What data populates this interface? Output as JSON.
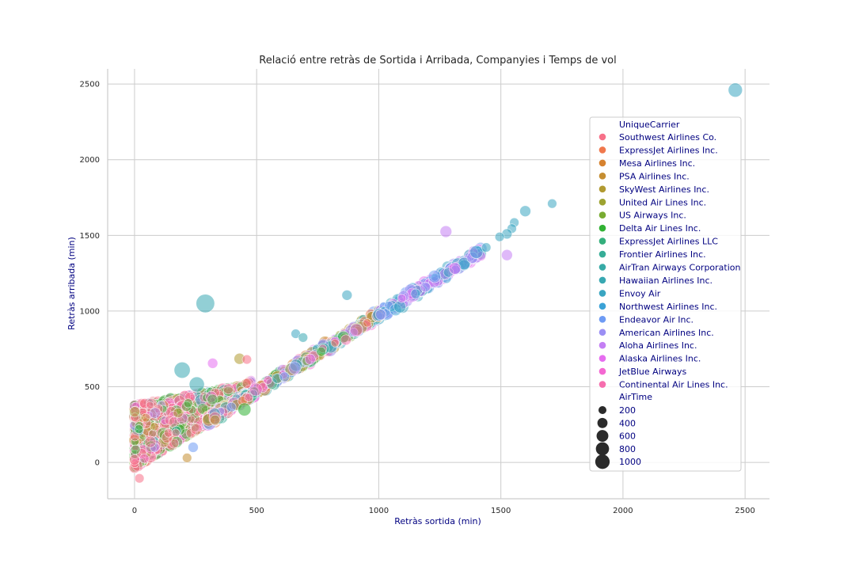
{
  "chart_data": {
    "type": "scatter",
    "title": "Relació entre retràs de Sortida i Arribada, Companyies i Temps de vol",
    "xlabel": "Retràs sortida (min)",
    "ylabel": "Retràs arribada (min)",
    "xlim": [
      -110,
      2600
    ],
    "ylim": [
      -240,
      2600
    ],
    "xticks": [
      "0",
      "500",
      "1000",
      "1500",
      "2000",
      "2500"
    ],
    "yticks": [
      "0",
      "500",
      "1000",
      "1500",
      "2000",
      "2500"
    ],
    "xtick_values": [
      0,
      500,
      1000,
      1500,
      2000,
      2500
    ],
    "ytick_values": [
      0,
      500,
      1000,
      1500,
      2000,
      2500
    ],
    "grid": true,
    "legend_position": "right",
    "hue_title": "UniqueCarrier",
    "size_title": "AirTime",
    "carriers": [
      {
        "name": "Southwest Airlines Co.",
        "color": "#f77189"
      },
      {
        "name": "ExpressJet Airlines Inc.",
        "color": "#f0784d"
      },
      {
        "name": "Mesa Airlines Inc.",
        "color": "#d6822f"
      },
      {
        "name": "PSA Airlines Inc.",
        "color": "#c58e32"
      },
      {
        "name": "SkyWest Airlines Inc.",
        "color": "#b19a31"
      },
      {
        "name": "United Air Lines Inc.",
        "color": "#9da331"
      },
      {
        "name": "US Airways Inc.",
        "color": "#78ab31"
      },
      {
        "name": "Delta Air Lines Inc.",
        "color": "#32b234"
      },
      {
        "name": "ExpressJet Airlines LLC",
        "color": "#34af7c"
      },
      {
        "name": "Frontier Airlines Inc.",
        "color": "#36ad97"
      },
      {
        "name": "AirTran Airways Corporation",
        "color": "#37aaa6"
      },
      {
        "name": "Hawaiian Airlines Inc.",
        "color": "#38a8b2"
      },
      {
        "name": "Envoy Air",
        "color": "#3aa5c1"
      },
      {
        "name": "Northwest Airlines Inc.",
        "color": "#3ba2d6"
      },
      {
        "name": "Endeavor Air Inc.",
        "color": "#6e9bf4"
      },
      {
        "name": "American Airlines Inc.",
        "color": "#9b8ff4"
      },
      {
        "name": "Aloha Airlines Inc.",
        "color": "#c47ff4"
      },
      {
        "name": "Alaska Airlines Inc.",
        "color": "#e66df0"
      },
      {
        "name": "JetBlue Airways",
        "color": "#f468d2"
      },
      {
        "name": "Continental Air Lines Inc.",
        "color": "#f66eae"
      }
    ],
    "size_legend": [
      "200",
      "400",
      "600",
      "800",
      "1000"
    ],
    "size_legend_values": [
      200,
      400,
      600,
      800,
      1000
    ],
    "notable_points": [
      {
        "x": 2460,
        "y": 2460,
        "airtime": 500,
        "carrier": "Envoy Air"
      },
      {
        "x": 290,
        "y": 1050,
        "airtime": 1000,
        "carrier": "Hawaiian Airlines Inc."
      },
      {
        "x": 195,
        "y": 610,
        "airtime": 700,
        "carrier": "Hawaiian Airlines Inc."
      },
      {
        "x": 255,
        "y": 515,
        "airtime": 600,
        "carrier": "Hawaiian Airlines Inc."
      },
      {
        "x": 1710,
        "y": 1710,
        "airtime": 150,
        "carrier": "Envoy Air"
      },
      {
        "x": 1600,
        "y": 1660,
        "airtime": 250,
        "carrier": "Envoy Air"
      },
      {
        "x": 1555,
        "y": 1585,
        "airtime": 150,
        "carrier": "Envoy Air"
      },
      {
        "x": 1545,
        "y": 1545,
        "airtime": 150,
        "carrier": "Envoy Air"
      },
      {
        "x": 1525,
        "y": 1510,
        "airtime": 200,
        "carrier": "Envoy Air"
      },
      {
        "x": 1495,
        "y": 1490,
        "airtime": 150,
        "carrier": "Envoy Air"
      },
      {
        "x": 1275,
        "y": 1525,
        "airtime": 300,
        "carrier": "Aloha Airlines Inc."
      },
      {
        "x": 1525,
        "y": 1370,
        "airtime": 250,
        "carrier": "Aloha Airlines Inc."
      },
      {
        "x": 1400,
        "y": 1390,
        "airtime": 400,
        "carrier": "Northwest Airlines Inc."
      },
      {
        "x": 1440,
        "y": 1420,
        "airtime": 150,
        "carrier": "Envoy Air"
      },
      {
        "x": 870,
        "y": 1105,
        "airtime": 200,
        "carrier": "Envoy Air"
      },
      {
        "x": 660,
        "y": 850,
        "airtime": 150,
        "carrier": "Envoy Air"
      },
      {
        "x": 690,
        "y": 825,
        "airtime": 150,
        "carrier": "Hawaiian Airlines Inc."
      },
      {
        "x": 430,
        "y": 685,
        "airtime": 250,
        "carrier": "SkyWest Airlines Inc."
      },
      {
        "x": 320,
        "y": 655,
        "airtime": 200,
        "carrier": "Alaska Airlines Inc."
      },
      {
        "x": 460,
        "y": 680,
        "airtime": 150,
        "carrier": "Southwest Airlines Co."
      },
      {
        "x": 450,
        "y": 350,
        "airtime": 400,
        "carrier": "Delta Air Lines Inc."
      },
      {
        "x": 240,
        "y": 100,
        "airtime": 200,
        "carrier": "Endeavor Air Inc."
      },
      {
        "x": 215,
        "y": 30,
        "airtime": 150,
        "carrier": "PSA Airlines Inc."
      },
      {
        "x": 20,
        "y": -105,
        "airtime": 150,
        "carrier": "Southwest Airlines Co."
      }
    ]
  }
}
